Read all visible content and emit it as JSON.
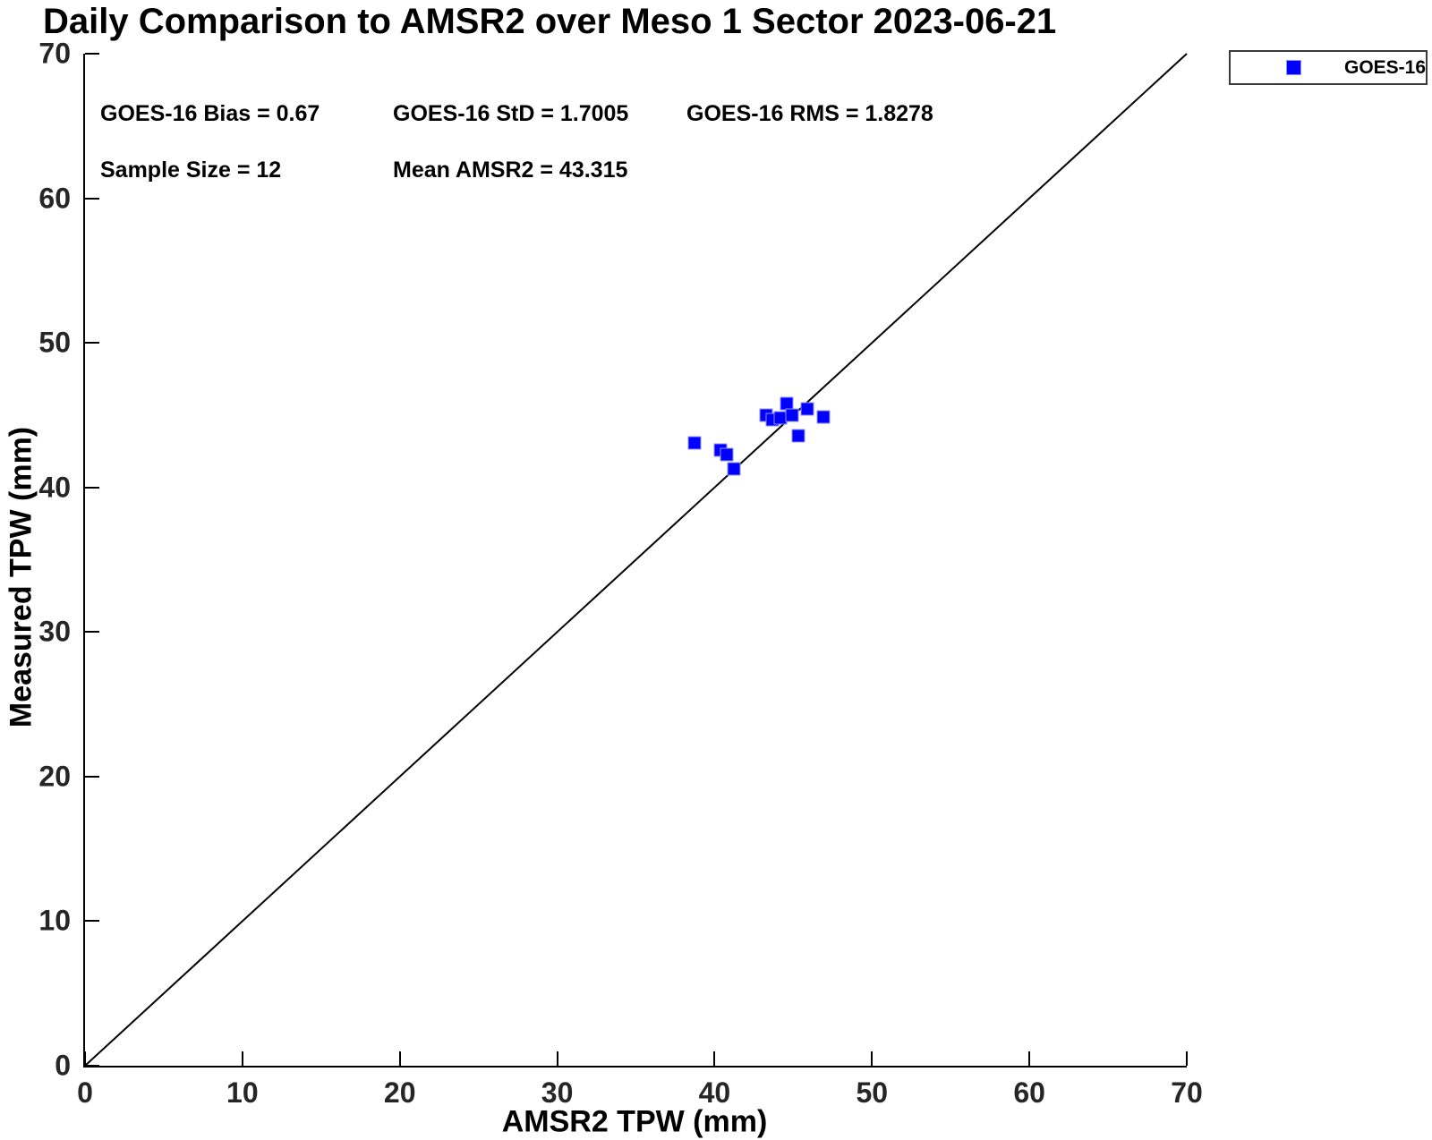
{
  "title": "Daily Comparison to AMSR2 over Meso 1 Sector 2023-06-21",
  "legend": {
    "entries": [
      {
        "label": "GOES-16",
        "marker": "square-icon",
        "color": "#0000ff"
      }
    ],
    "position": "top-right-outside"
  },
  "chart_data": {
    "type": "scatter",
    "title": "Daily Comparison to AMSR2 over Meso 1 Sector 2023-06-21",
    "xlabel": "AMSR2 TPW (mm)",
    "ylabel": "Measured TPW (mm)",
    "xlim": [
      0,
      70
    ],
    "ylim": [
      0,
      70
    ],
    "xticks": [
      0,
      10,
      20,
      30,
      40,
      50,
      60,
      70
    ],
    "yticks": [
      0,
      10,
      20,
      30,
      40,
      50,
      60,
      70
    ],
    "grid": false,
    "reference_line": {
      "from": [
        0,
        0
      ],
      "to": [
        70,
        70
      ],
      "color": "#000000",
      "width": 2
    },
    "series": [
      {
        "name": "GOES-16",
        "marker": "square",
        "color": "#0000ff",
        "points": [
          [
            38.7,
            43.1
          ],
          [
            40.4,
            42.6
          ],
          [
            40.8,
            42.3
          ],
          [
            41.2,
            41.3
          ],
          [
            43.3,
            45.0
          ],
          [
            43.7,
            44.7
          ],
          [
            44.2,
            44.8
          ],
          [
            44.6,
            45.8
          ],
          [
            44.9,
            45.0
          ],
          [
            45.9,
            45.4
          ],
          [
            46.9,
            44.9
          ],
          [
            45.3,
            43.6
          ]
        ]
      }
    ],
    "annotations": {
      "bias": "GOES-16 Bias = 0.67",
      "std": "GOES-16 StD = 1.7005",
      "rms": "GOES-16 RMS = 1.8278",
      "sample_size": "Sample Size = 12",
      "mean_amsr2": "Mean AMSR2 = 43.315"
    }
  },
  "colors": {
    "marker": "#0000ff",
    "marker_edge": "#9090ff",
    "axis": "#000000",
    "tick_label": "#262626",
    "text": "#000000",
    "legend_border": "#3a3a3a",
    "background": "#ffffff"
  }
}
